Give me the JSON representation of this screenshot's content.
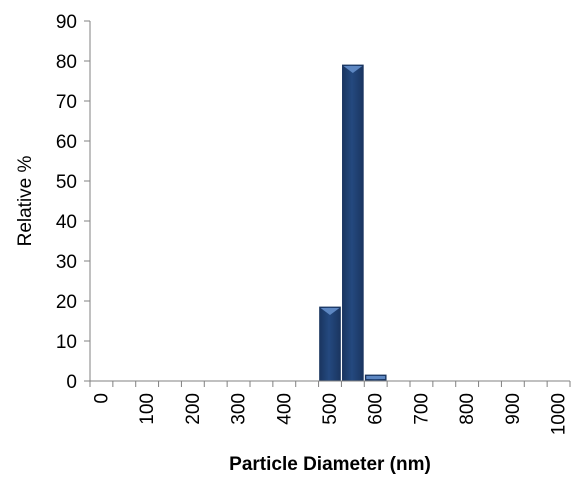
{
  "colors": {
    "bar_fill": "#24497f",
    "bar_highlight": "#5d87c2",
    "bar_edge": "#1a3560",
    "axis": "#808080"
  },
  "chart_data": {
    "type": "bar",
    "title": "",
    "xlabel": "Particle Diameter (nm)",
    "ylabel": "Relative %",
    "x_tick_labels": [
      "0",
      "100",
      "200",
      "300",
      "400",
      "500",
      "600",
      "700",
      "800",
      "900",
      "1000"
    ],
    "y_tick_labels": [
      "0",
      "10",
      "20",
      "30",
      "40",
      "50",
      "60",
      "70",
      "80",
      "90"
    ],
    "ylim": [
      0,
      90
    ],
    "xlim": [
      0,
      1000
    ],
    "grid": false,
    "legend": "none",
    "bars": [
      {
        "x": 500,
        "value": 18.5
      },
      {
        "x": 550,
        "value": 79
      },
      {
        "x": 600,
        "value": 1.5
      }
    ]
  }
}
